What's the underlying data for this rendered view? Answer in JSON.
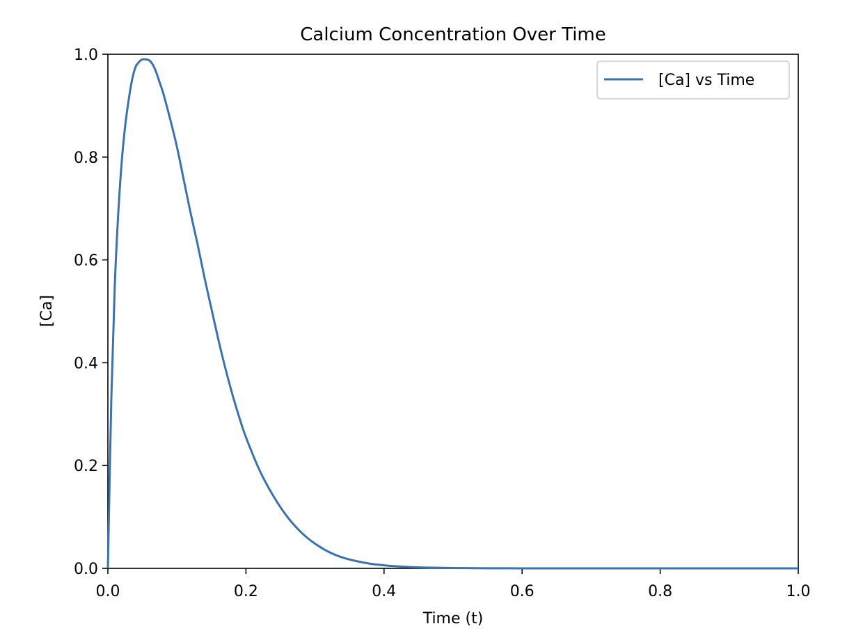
{
  "chart_data": {
    "type": "line",
    "title": "Calcium Concentration Over Time",
    "xlabel": "Time (t)",
    "ylabel": "[Ca]",
    "xlim": [
      0.0,
      1.0
    ],
    "ylim": [
      0.0,
      1.0
    ],
    "xticks": [
      "0.0",
      "0.2",
      "0.4",
      "0.6",
      "0.8",
      "1.0"
    ],
    "yticks": [
      "0.0",
      "0.2",
      "0.4",
      "0.6",
      "0.8",
      "1.0"
    ],
    "grid": false,
    "legend_position": "top-right",
    "series": [
      {
        "name": "[Ca] vs Time",
        "color": "#3a72ad",
        "x": [
          0.0,
          0.005,
          0.01,
          0.015,
          0.02,
          0.025,
          0.03,
          0.035,
          0.04,
          0.045,
          0.05,
          0.055,
          0.06,
          0.065,
          0.07,
          0.075,
          0.08,
          0.09,
          0.1,
          0.11,
          0.12,
          0.13,
          0.14,
          0.15,
          0.16,
          0.17,
          0.18,
          0.19,
          0.2,
          0.22,
          0.24,
          0.26,
          0.28,
          0.3,
          0.32,
          0.34,
          0.36,
          0.38,
          0.4,
          0.43,
          0.46,
          0.5,
          0.55,
          0.6,
          0.65,
          0.7,
          0.8,
          0.9,
          1.0
        ],
        "y": [
          0.0,
          0.33,
          0.55,
          0.69,
          0.79,
          0.86,
          0.91,
          0.95,
          0.975,
          0.985,
          0.99,
          0.99,
          0.988,
          0.98,
          0.965,
          0.945,
          0.925,
          0.875,
          0.82,
          0.755,
          0.69,
          0.63,
          0.565,
          0.505,
          0.445,
          0.39,
          0.34,
          0.295,
          0.255,
          0.19,
          0.14,
          0.1,
          0.07,
          0.048,
          0.032,
          0.021,
          0.014,
          0.009,
          0.006,
          0.003,
          0.0015,
          0.0006,
          0.0002,
          5e-05,
          0.0,
          0.0,
          0.0,
          0.0,
          0.0
        ]
      }
    ]
  }
}
